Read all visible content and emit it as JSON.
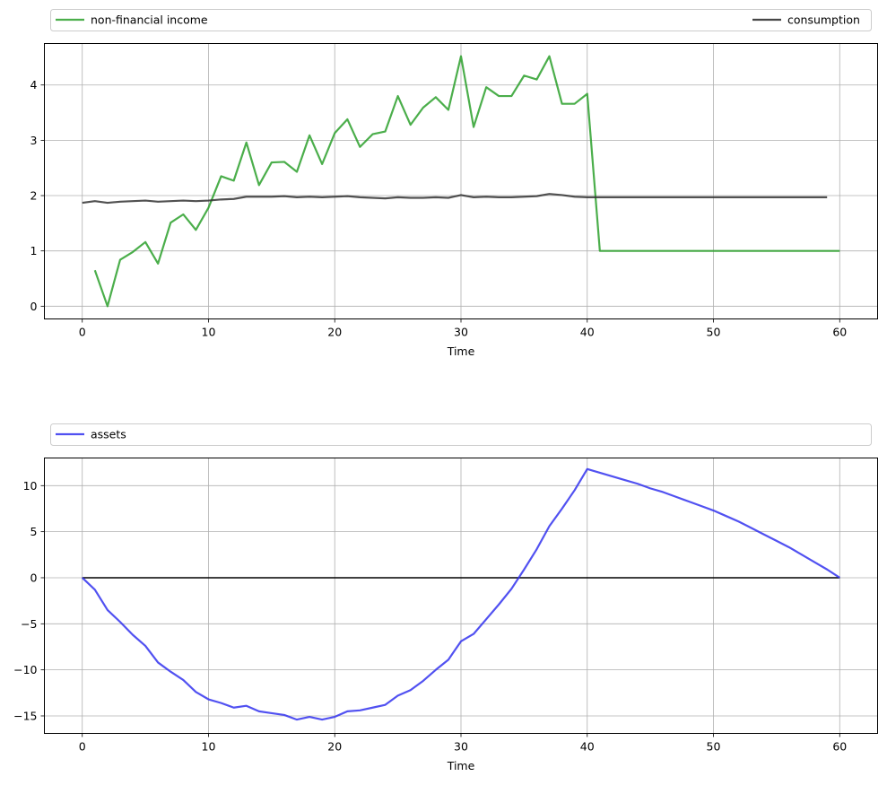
{
  "chart_data": [
    {
      "type": "line",
      "xlabel": "Time",
      "ylabel": "",
      "xlim": [
        -3,
        63
      ],
      "ylim": [
        -0.23,
        4.75
      ],
      "xticks": [
        0,
        10,
        20,
        30,
        40,
        50,
        60
      ],
      "yticks": [
        0,
        1,
        2,
        3,
        4
      ],
      "grid": true,
      "legend": {
        "placement": "above",
        "left_label": "non-financial income",
        "right_label": "consumption"
      },
      "series": [
        {
          "name": "non-financial income",
          "color": "#2ca02c",
          "x": [
            1,
            2,
            3,
            4,
            5,
            6,
            7,
            8,
            9,
            10,
            11,
            12,
            13,
            14,
            15,
            16,
            17,
            18,
            19,
            20,
            21,
            22,
            23,
            24,
            25,
            26,
            27,
            28,
            29,
            30,
            31,
            32,
            33,
            34,
            35,
            36,
            37,
            38,
            39,
            40,
            41,
            42,
            43,
            44,
            45,
            46,
            47,
            48,
            49,
            50,
            51,
            52,
            53,
            54,
            55,
            56,
            57,
            58,
            59,
            60
          ],
          "values": [
            0.65,
            0.0,
            0.84,
            0.98,
            1.16,
            0.77,
            1.51,
            1.66,
            1.38,
            1.78,
            2.35,
            2.27,
            2.96,
            2.19,
            2.6,
            2.61,
            2.43,
            3.09,
            2.57,
            3.13,
            3.38,
            2.88,
            3.11,
            3.16,
            3.8,
            3.28,
            3.59,
            3.78,
            3.55,
            4.52,
            3.24,
            3.96,
            3.8,
            3.8,
            4.17,
            4.1,
            4.52,
            3.66,
            3.66,
            3.84,
            1.0,
            1.0,
            1.0,
            1.0,
            1.0,
            1.0,
            1.0,
            1.0,
            1.0,
            1.0,
            1.0,
            1.0,
            1.0,
            1.0,
            1.0,
            1.0,
            1.0,
            1.0,
            1.0,
            1.0
          ]
        },
        {
          "name": "consumption",
          "color": "#333333",
          "x": [
            0,
            1,
            2,
            3,
            4,
            5,
            6,
            7,
            8,
            9,
            10,
            11,
            12,
            13,
            14,
            15,
            16,
            17,
            18,
            19,
            20,
            21,
            22,
            23,
            24,
            25,
            26,
            27,
            28,
            29,
            30,
            31,
            32,
            33,
            34,
            35,
            36,
            37,
            38,
            39,
            40,
            41,
            42,
            43,
            44,
            45,
            46,
            47,
            48,
            49,
            50,
            51,
            52,
            53,
            54,
            55,
            56,
            57,
            58,
            59
          ],
          "values": [
            1.87,
            1.9,
            1.87,
            1.89,
            1.9,
            1.91,
            1.89,
            1.9,
            1.91,
            1.9,
            1.91,
            1.93,
            1.94,
            1.98,
            1.98,
            1.98,
            1.99,
            1.97,
            1.98,
            1.97,
            1.98,
            1.99,
            1.97,
            1.96,
            1.95,
            1.97,
            1.96,
            1.96,
            1.97,
            1.96,
            2.01,
            1.97,
            1.98,
            1.97,
            1.97,
            1.98,
            1.99,
            2.03,
            2.01,
            1.98,
            1.97,
            1.97,
            1.97,
            1.97,
            1.97,
            1.97,
            1.97,
            1.97,
            1.97,
            1.97,
            1.97,
            1.97,
            1.97,
            1.97,
            1.97,
            1.97,
            1.97,
            1.97,
            1.97,
            1.97
          ]
        }
      ]
    },
    {
      "type": "line",
      "xlabel": "Time",
      "ylabel": "",
      "xlim": [
        -3,
        63
      ],
      "ylim": [
        -16.9,
        13.0
      ],
      "xticks": [
        0,
        10,
        20,
        30,
        40,
        50,
        60
      ],
      "yticks": [
        -15,
        -10,
        -5,
        0,
        5,
        10
      ],
      "grid": true,
      "legend": {
        "placement": "above",
        "left_label": "assets"
      },
      "zero_line": {
        "value": 0,
        "color": "#000000"
      },
      "series": [
        {
          "name": "assets",
          "color": "#3333ee",
          "x": [
            0,
            1,
            2,
            3,
            4,
            5,
            6,
            7,
            8,
            9,
            10,
            11,
            12,
            13,
            14,
            15,
            16,
            17,
            18,
            19,
            20,
            21,
            22,
            23,
            24,
            25,
            26,
            27,
            28,
            29,
            30,
            31,
            32,
            33,
            34,
            35,
            36,
            37,
            38,
            39,
            40,
            41,
            42,
            43,
            44,
            45,
            46,
            47,
            48,
            49,
            50,
            51,
            52,
            53,
            54,
            55,
            56,
            57,
            58,
            59,
            60
          ],
          "values": [
            0,
            -1.3,
            -3.5,
            -4.8,
            -6.2,
            -7.4,
            -9.2,
            -10.2,
            -11.1,
            -12.4,
            -13.2,
            -13.6,
            -14.1,
            -13.9,
            -14.5,
            -14.7,
            -14.9,
            -15.4,
            -15.1,
            -15.4,
            -15.1,
            -14.5,
            -14.4,
            -14.1,
            -13.8,
            -12.8,
            -12.2,
            -11.2,
            -10.0,
            -8.9,
            -6.9,
            -6.1,
            -4.5,
            -2.9,
            -1.2,
            0.9,
            3.1,
            5.6,
            7.5,
            9.5,
            11.8,
            11.4,
            11.0,
            10.6,
            10.2,
            9.7,
            9.3,
            8.8,
            8.3,
            7.8,
            7.3,
            6.7,
            6.1,
            5.4,
            4.7,
            4.0,
            3.3,
            2.5,
            1.7,
            0.9,
            0.0
          ]
        }
      ]
    }
  ]
}
